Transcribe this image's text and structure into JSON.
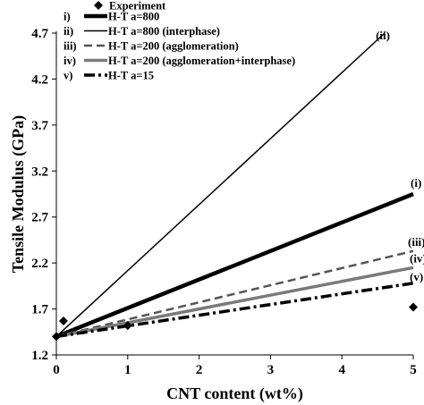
{
  "chart_data": {
    "type": "line",
    "xlabel": "CNT content (wt%)",
    "ylabel": "Tensile Modulus (GPa)",
    "xlim": [
      0,
      5
    ],
    "ylim": [
      1.2,
      4.7
    ],
    "xticks": [
      0,
      1,
      2,
      3,
      4,
      5
    ],
    "yticks": [
      1.2,
      1.7,
      2.2,
      2.7,
      3.2,
      3.7,
      4.2,
      4.7
    ],
    "ytick_labels": [
      "1.2",
      "1.7",
      "2.2",
      "2.7",
      "3.2",
      "3.7",
      "4.2",
      "4.7"
    ],
    "legend_placement": "top-left",
    "grid": false,
    "experiment": {
      "name": "Experiment",
      "x": [
        0,
        0.1,
        1,
        5
      ],
      "y": [
        1.4,
        1.57,
        1.52,
        1.72
      ],
      "color": "#000000"
    },
    "series": [
      {
        "tag": "i)",
        "name": "H-T a=800",
        "end_label": "(i)",
        "x": [
          0,
          5
        ],
        "y": [
          1.4,
          2.95
        ],
        "color": "#000000",
        "width": 4.5,
        "dash": ""
      },
      {
        "tag": "ii)",
        "name": "H-T a=800 (interphase)",
        "end_label": "(ii)",
        "x": [
          0,
          4.6
        ],
        "y": [
          1.4,
          4.7
        ],
        "color": "#000000",
        "width": 1.5,
        "dash": ""
      },
      {
        "tag": "iii)",
        "name": "H-T a=200 (agglomeration)",
        "end_label": "(iii)",
        "x": [
          0,
          5
        ],
        "y": [
          1.4,
          2.33
        ],
        "color": "#555555",
        "width": 2.5,
        "dash": "9,5"
      },
      {
        "tag": "iv)",
        "name": "H-T a=200 (agglomeration+interphase)",
        "end_label": "(iv)",
        "x": [
          0,
          5
        ],
        "y": [
          1.4,
          2.15
        ],
        "color": "#7a7a7a",
        "width": 3.5,
        "dash": ""
      },
      {
        "tag": "v)",
        "name": "H-T a=15",
        "end_label": "(v)",
        "x": [
          0,
          5
        ],
        "y": [
          1.4,
          1.98
        ],
        "color": "#000000",
        "width": 3.5,
        "dash": "12,4,3,4"
      }
    ]
  }
}
